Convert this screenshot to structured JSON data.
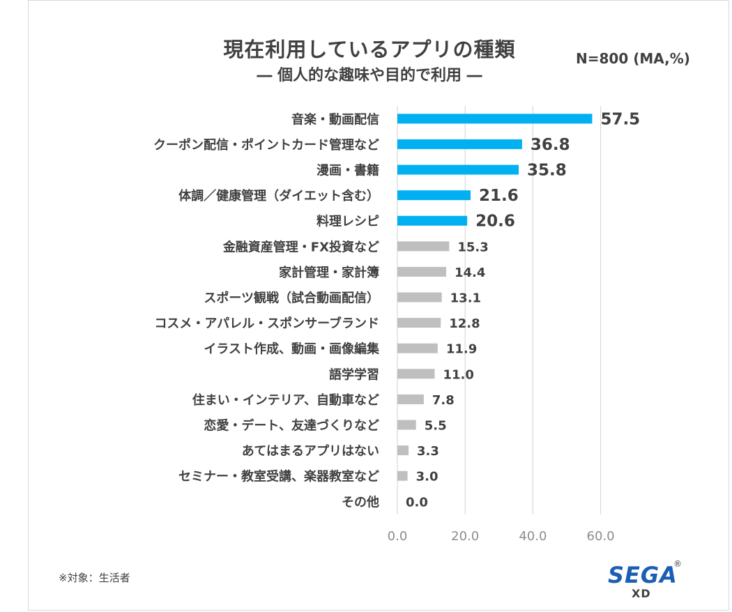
{
  "header": {
    "title": "現在利用しているアプリの種類",
    "subtitle": "― 個人的な趣味や目的で利用 ―",
    "sample": "N=800 (MA,%)"
  },
  "footer": {
    "note": "※対象：生活者",
    "logo_text": "SEGA",
    "logo_reg": "®",
    "logo_sub": "XD"
  },
  "colors": {
    "highlight": "#00b0f0",
    "normal": "#bfbfbf",
    "grid": "#d9d9d9"
  },
  "chart_data": {
    "type": "bar",
    "orientation": "horizontal",
    "title": "現在利用しているアプリの種類",
    "subtitle": "― 個人的な趣味や目的で利用 ―",
    "categories": [
      "音楽・動画配信",
      "クーポン配信・ポイントカード管理など",
      "漫画・書籍",
      "体調／健康管理（ダイエット含む）",
      "料理レシピ",
      "金融資産管理・FX投資など",
      "家計管理・家計簿",
      "スポーツ観戦（試合動画配信）",
      "コスメ・アパレル・スポンサーブランド",
      "イラスト作成、動画・画像編集",
      "語学学習",
      "住まい・インテリア、自動車など",
      "恋愛・デート、友達づくりなど",
      "あてはまるアプリはない",
      "セミナー・教室受講、楽器教室など",
      "その他"
    ],
    "values": [
      57.5,
      36.8,
      35.8,
      21.6,
      20.6,
      15.3,
      14.4,
      13.1,
      12.8,
      11.9,
      11.0,
      7.8,
      5.5,
      3.3,
      3.0,
      0.0
    ],
    "labels": [
      "57.5",
      "36.8",
      "35.8",
      "21.6",
      "20.6",
      "15.3",
      "14.4",
      "13.1",
      "12.8",
      "11.9",
      "11.0",
      "7.8",
      "5.5",
      "3.3",
      "3.0",
      "0.0"
    ],
    "highlight_count": 5,
    "xlim": [
      0,
      60
    ],
    "xticks": [
      0,
      20,
      40,
      60
    ],
    "xtick_labels": [
      "0.0",
      "20.0",
      "40.0",
      "60.0"
    ],
    "grid": true
  }
}
